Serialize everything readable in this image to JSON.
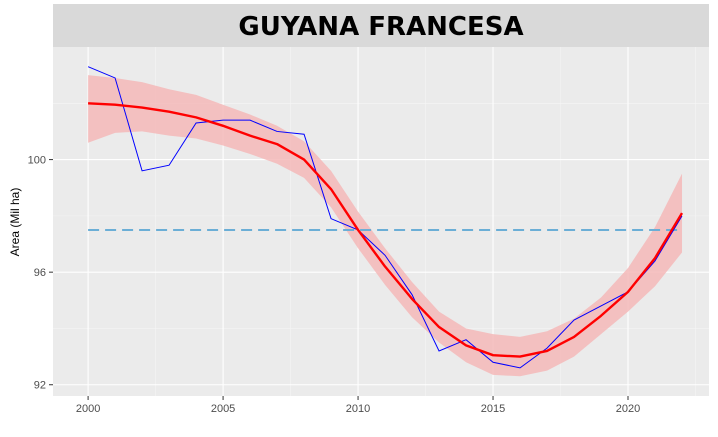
{
  "chart_data": {
    "type": "line",
    "title": "GUYANA FRANCESA",
    "xlabel": "",
    "ylabel": "Area (Mil ha)",
    "xlim": [
      1998.7,
      2023.0
    ],
    "ylim": [
      91.6,
      104.0
    ],
    "xticks": [
      2000,
      2005,
      2010,
      2015,
      2020
    ],
    "yticks": [
      92,
      96,
      100
    ],
    "grid": true,
    "legend": "none",
    "series": [
      {
        "role": "observed",
        "color": "#0000ff",
        "x": [
          2000,
          2001,
          2002,
          2003,
          2004,
          2005,
          2006,
          2007,
          2008,
          2009,
          2010,
          2011,
          2012,
          2013,
          2014,
          2015,
          2016,
          2017,
          2018,
          2019,
          2020,
          2021,
          2022
        ],
        "values": [
          103.3,
          102.9,
          99.6,
          99.8,
          101.3,
          101.4,
          101.4,
          101.0,
          100.9,
          97.9,
          97.5,
          96.6,
          95.2,
          93.2,
          93.6,
          92.8,
          92.6,
          93.3,
          94.3,
          94.8,
          95.3,
          96.4,
          98.0
        ]
      },
      {
        "role": "smooth",
        "color": "#ff0000",
        "x": [
          2000,
          2001,
          2002,
          2003,
          2004,
          2005,
          2006,
          2007,
          2008,
          2009,
          2010,
          2011,
          2012,
          2013,
          2014,
          2015,
          2016,
          2017,
          2018,
          2019,
          2020,
          2021,
          2022
        ],
        "values": [
          102.0,
          101.95,
          101.85,
          101.7,
          101.5,
          101.2,
          100.85,
          100.55,
          100.0,
          98.95,
          97.5,
          96.2,
          95.05,
          94.05,
          93.4,
          93.05,
          93.0,
          93.2,
          93.7,
          94.45,
          95.3,
          96.5,
          98.1
        ],
        "ci_upper": [
          103.0,
          102.9,
          102.75,
          102.5,
          102.3,
          101.95,
          101.6,
          101.2,
          100.65,
          99.6,
          98.15,
          96.85,
          95.65,
          94.6,
          94.0,
          93.8,
          93.7,
          93.9,
          94.35,
          95.1,
          96.15,
          97.6,
          99.5
        ],
        "ci_lower": [
          100.6,
          100.95,
          101.0,
          100.85,
          100.75,
          100.5,
          100.2,
          99.85,
          99.35,
          98.3,
          96.85,
          95.55,
          94.4,
          93.5,
          92.8,
          92.35,
          92.3,
          92.5,
          93.0,
          93.8,
          94.6,
          95.5,
          96.7
        ],
        "ci_color": "#f4b8b8"
      },
      {
        "role": "mean",
        "color": "#6baed6",
        "dashed": true,
        "x": [
          2000,
          2022
        ],
        "values": [
          97.5,
          97.5
        ]
      }
    ]
  }
}
